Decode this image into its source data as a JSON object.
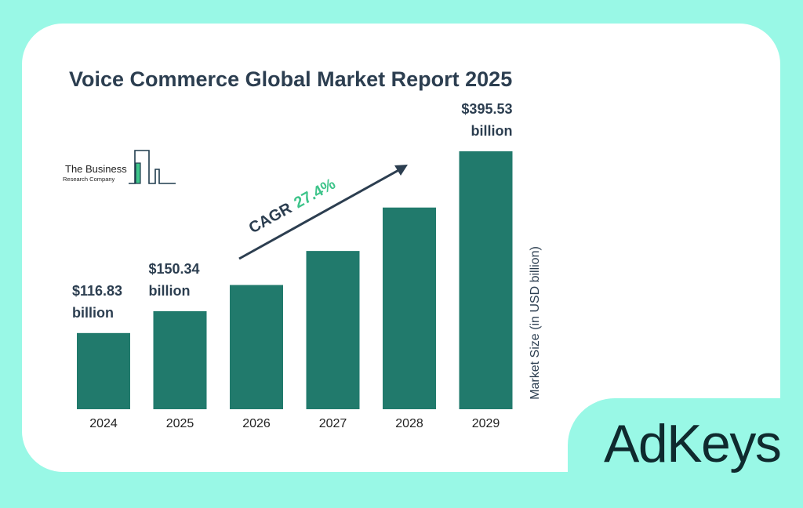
{
  "title": "Voice Commerce Global Market Report 2025",
  "logo": {
    "line1": "The Business",
    "line2": "Research Company"
  },
  "brand": "AdKeys",
  "cagr": {
    "label": "CAGR",
    "value": "27.4%"
  },
  "colors": {
    "background": "#99f8e6",
    "card": "#ffffff",
    "bar": "#217a6c",
    "title": "#2c3e50",
    "cagr_accent": "#3ec48a",
    "brand": "#0f2a2e"
  },
  "chart_data": {
    "type": "bar",
    "title": "Voice Commerce Global Market Report 2025",
    "categories": [
      "2024",
      "2025",
      "2026",
      "2027",
      "2028",
      "2029"
    ],
    "values": [
      116.83,
      150.34,
      190.5,
      242.7,
      309.3,
      395.53
    ],
    "data_labels": [
      {
        "index": 0,
        "line1": "$116.83",
        "line2": "billion"
      },
      {
        "index": 1,
        "line1": "$150.34",
        "line2": "billion"
      },
      {
        "index": 5,
        "line1": "$395.53",
        "line2": "billion"
      }
    ],
    "ylabel": "Market Size (in USD billion)",
    "xlabel": "",
    "grid": false,
    "legend": "none"
  }
}
